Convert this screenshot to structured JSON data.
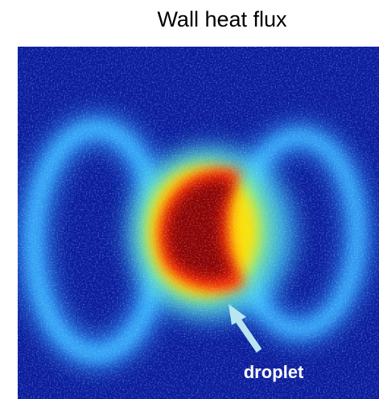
{
  "title": "Wall heat flux",
  "annotation": "droplet"
}
